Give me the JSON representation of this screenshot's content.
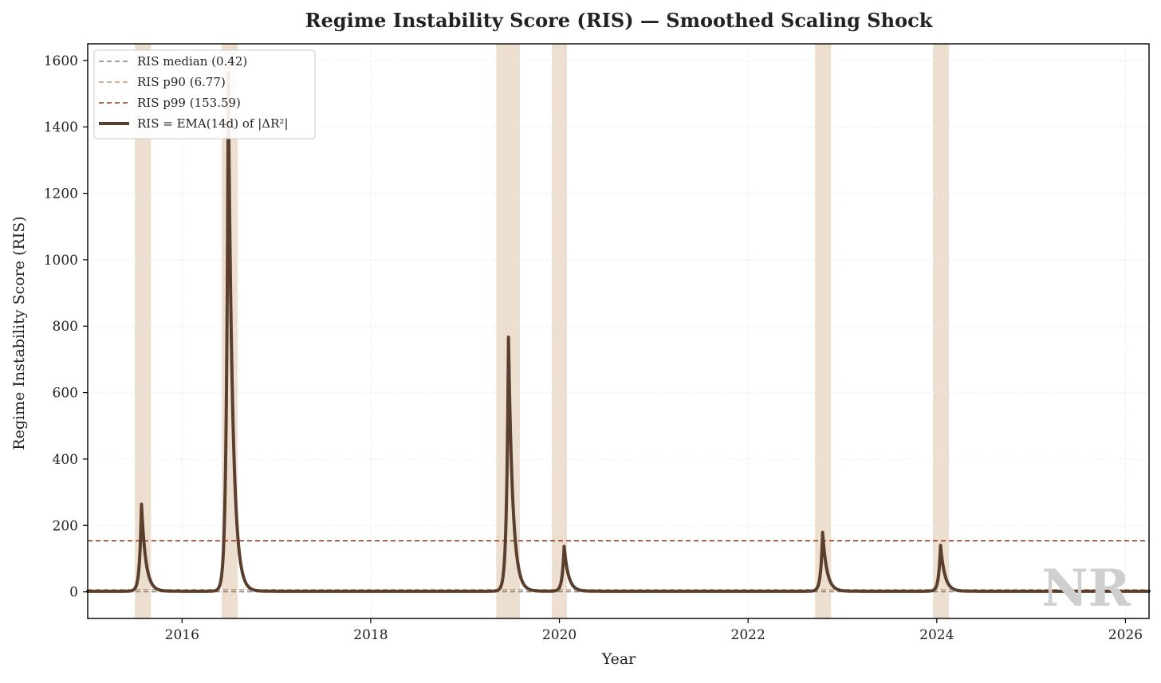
{
  "chart_data": {
    "type": "line",
    "title": "Regime Instability Score (RIS) — Smoothed Scaling Shock",
    "xlabel": "Year",
    "ylabel": "Regime Instability Score (RIS)",
    "xlim": [
      2015.0,
      2026.25
    ],
    "ylim": [
      -80,
      1650
    ],
    "x_ticks": [
      2016,
      2018,
      2020,
      2022,
      2024,
      2026
    ],
    "y_ticks": [
      0,
      200,
      400,
      600,
      800,
      1000,
      1200,
      1400,
      1600
    ],
    "grid": true,
    "legend_placement": "upper-left",
    "legend": [
      "RIS median (0.42)",
      "RIS p90 (6.77)",
      "RIS p99 (153.59)",
      "RIS = EMA(14d) of |ΔR²|"
    ],
    "reference_lines": [
      {
        "name": "RIS median (0.42)",
        "value": 0.42,
        "color": "#7f7f7f",
        "style": "dashed"
      },
      {
        "name": "RIS p90 (6.77)",
        "value": 6.77,
        "color": "#c49a6c",
        "style": "dashed"
      },
      {
        "name": "RIS p99 (153.59)",
        "value": 153.59,
        "color": "#8b3a1e",
        "style": "dashed"
      }
    ],
    "shaded_regions": [
      [
        2015.5,
        2015.67
      ],
      [
        2016.42,
        2016.59
      ],
      [
        2019.33,
        2019.58
      ],
      [
        2019.92,
        2020.08
      ],
      [
        2022.71,
        2022.88
      ],
      [
        2023.96,
        2024.13
      ]
    ],
    "series": [
      {
        "name": "RIS = EMA(14d) of |ΔR²|",
        "color": "#5a3e2e",
        "baseline": 2,
        "peaks": [
          {
            "x": 2015.57,
            "y": 262
          },
          {
            "x": 2016.49,
            "y": 1560
          },
          {
            "x": 2019.46,
            "y": 765
          },
          {
            "x": 2020.05,
            "y": 135
          },
          {
            "x": 2022.79,
            "y": 177
          },
          {
            "x": 2024.04,
            "y": 138
          }
        ]
      }
    ],
    "colors": {
      "shade": "#e6d4bf",
      "grid": "#e8e8e8"
    }
  },
  "watermark": "NR"
}
